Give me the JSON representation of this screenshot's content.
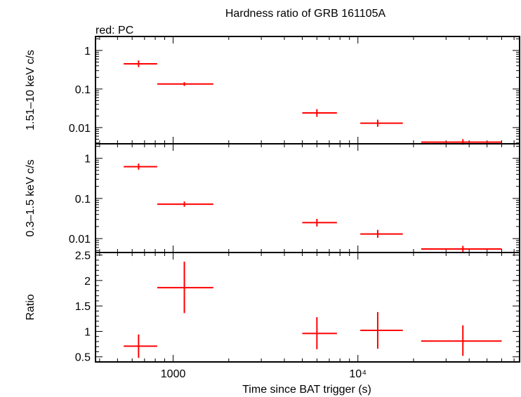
{
  "title": "Hardness ratio of GRB 161105A",
  "subtitle": "red: PC",
  "chart_data": {
    "type": "scatter",
    "xlabel": "Time since BAT trigger (s)",
    "xscale": "log",
    "xlim": [
      380,
      75000
    ],
    "x_tick_labels": [
      {
        "value": 1000,
        "label": "1000"
      },
      {
        "value": 10000,
        "label": "10⁴"
      }
    ],
    "panels": [
      {
        "id": "hard",
        "ylabel": "1.51–10 keV c/s",
        "yscale": "log",
        "ylim": [
          0.0038,
          2.3
        ],
        "y_tick_labels": [
          {
            "value": 1,
            "label": "1"
          },
          {
            "value": 0.1,
            "label": "0.1"
          },
          {
            "value": 0.01,
            "label": "0.01"
          }
        ],
        "series": [
          {
            "points": [
              {
                "x": 650,
                "xlo": 540,
                "xhi": 820,
                "y": 0.45,
                "ylo": 0.37,
                "yhi": 0.55
              },
              {
                "x": 1150,
                "xlo": 820,
                "xhi": 1650,
                "y": 0.135,
                "ylo": 0.12,
                "yhi": 0.15
              },
              {
                "x": 6000,
                "xlo": 5000,
                "xhi": 7700,
                "y": 0.024,
                "ylo": 0.019,
                "yhi": 0.03
              },
              {
                "x": 12800,
                "xlo": 10300,
                "xhi": 17500,
                "y": 0.013,
                "ylo": 0.0105,
                "yhi": 0.016
              },
              {
                "x": 37000,
                "xlo": 22000,
                "xhi": 60000,
                "y": 0.0042,
                "ylo": 0.0036,
                "yhi": 0.005
              }
            ]
          }
        ]
      },
      {
        "id": "soft",
        "ylabel": "0.3–1.5 keV c/s",
        "yscale": "log",
        "ylim": [
          0.0045,
          2.3
        ],
        "y_tick_labels": [
          {
            "value": 1,
            "label": "1"
          },
          {
            "value": 0.1,
            "label": "0.1"
          },
          {
            "value": 0.01,
            "label": "0.01"
          }
        ],
        "series": [
          {
            "points": [
              {
                "x": 650,
                "xlo": 540,
                "xhi": 820,
                "y": 0.62,
                "ylo": 0.52,
                "yhi": 0.74
              },
              {
                "x": 1150,
                "xlo": 820,
                "xhi": 1650,
                "y": 0.072,
                "ylo": 0.062,
                "yhi": 0.084
              },
              {
                "x": 6000,
                "xlo": 5000,
                "xhi": 7700,
                "y": 0.025,
                "ylo": 0.02,
                "yhi": 0.031
              },
              {
                "x": 12800,
                "xlo": 10300,
                "xhi": 17500,
                "y": 0.013,
                "ylo": 0.0105,
                "yhi": 0.0165
              },
              {
                "x": 37000,
                "xlo": 22000,
                "xhi": 60000,
                "y": 0.0055,
                "ylo": 0.0047,
                "yhi": 0.0066
              }
            ]
          }
        ]
      },
      {
        "id": "ratio",
        "ylabel": "Ratio",
        "yscale": "linear",
        "ylim": [
          0.4,
          2.55
        ],
        "y_tick_labels": [
          {
            "value": 0.5,
            "label": "0.5"
          },
          {
            "value": 1,
            "label": "1"
          },
          {
            "value": 1.5,
            "label": "1.5"
          },
          {
            "value": 2,
            "label": "2"
          },
          {
            "value": 2.5,
            "label": "2.5"
          }
        ],
        "series": [
          {
            "points": [
              {
                "x": 650,
                "xlo": 540,
                "xhi": 820,
                "y": 0.71,
                "ylo": 0.48,
                "yhi": 0.94
              },
              {
                "x": 1150,
                "xlo": 820,
                "xhi": 1650,
                "y": 1.86,
                "ylo": 1.36,
                "yhi": 2.37
              },
              {
                "x": 6000,
                "xlo": 5000,
                "xhi": 7700,
                "y": 0.96,
                "ylo": 0.65,
                "yhi": 1.28
              },
              {
                "x": 12800,
                "xlo": 10300,
                "xhi": 17500,
                "y": 1.02,
                "ylo": 0.66,
                "yhi": 1.38
              },
              {
                "x": 37000,
                "xlo": 22000,
                "xhi": 60000,
                "y": 0.81,
                "ylo": 0.52,
                "yhi": 1.12
              }
            ]
          }
        ]
      }
    ],
    "colors": {
      "pc": "#ff0000"
    }
  }
}
